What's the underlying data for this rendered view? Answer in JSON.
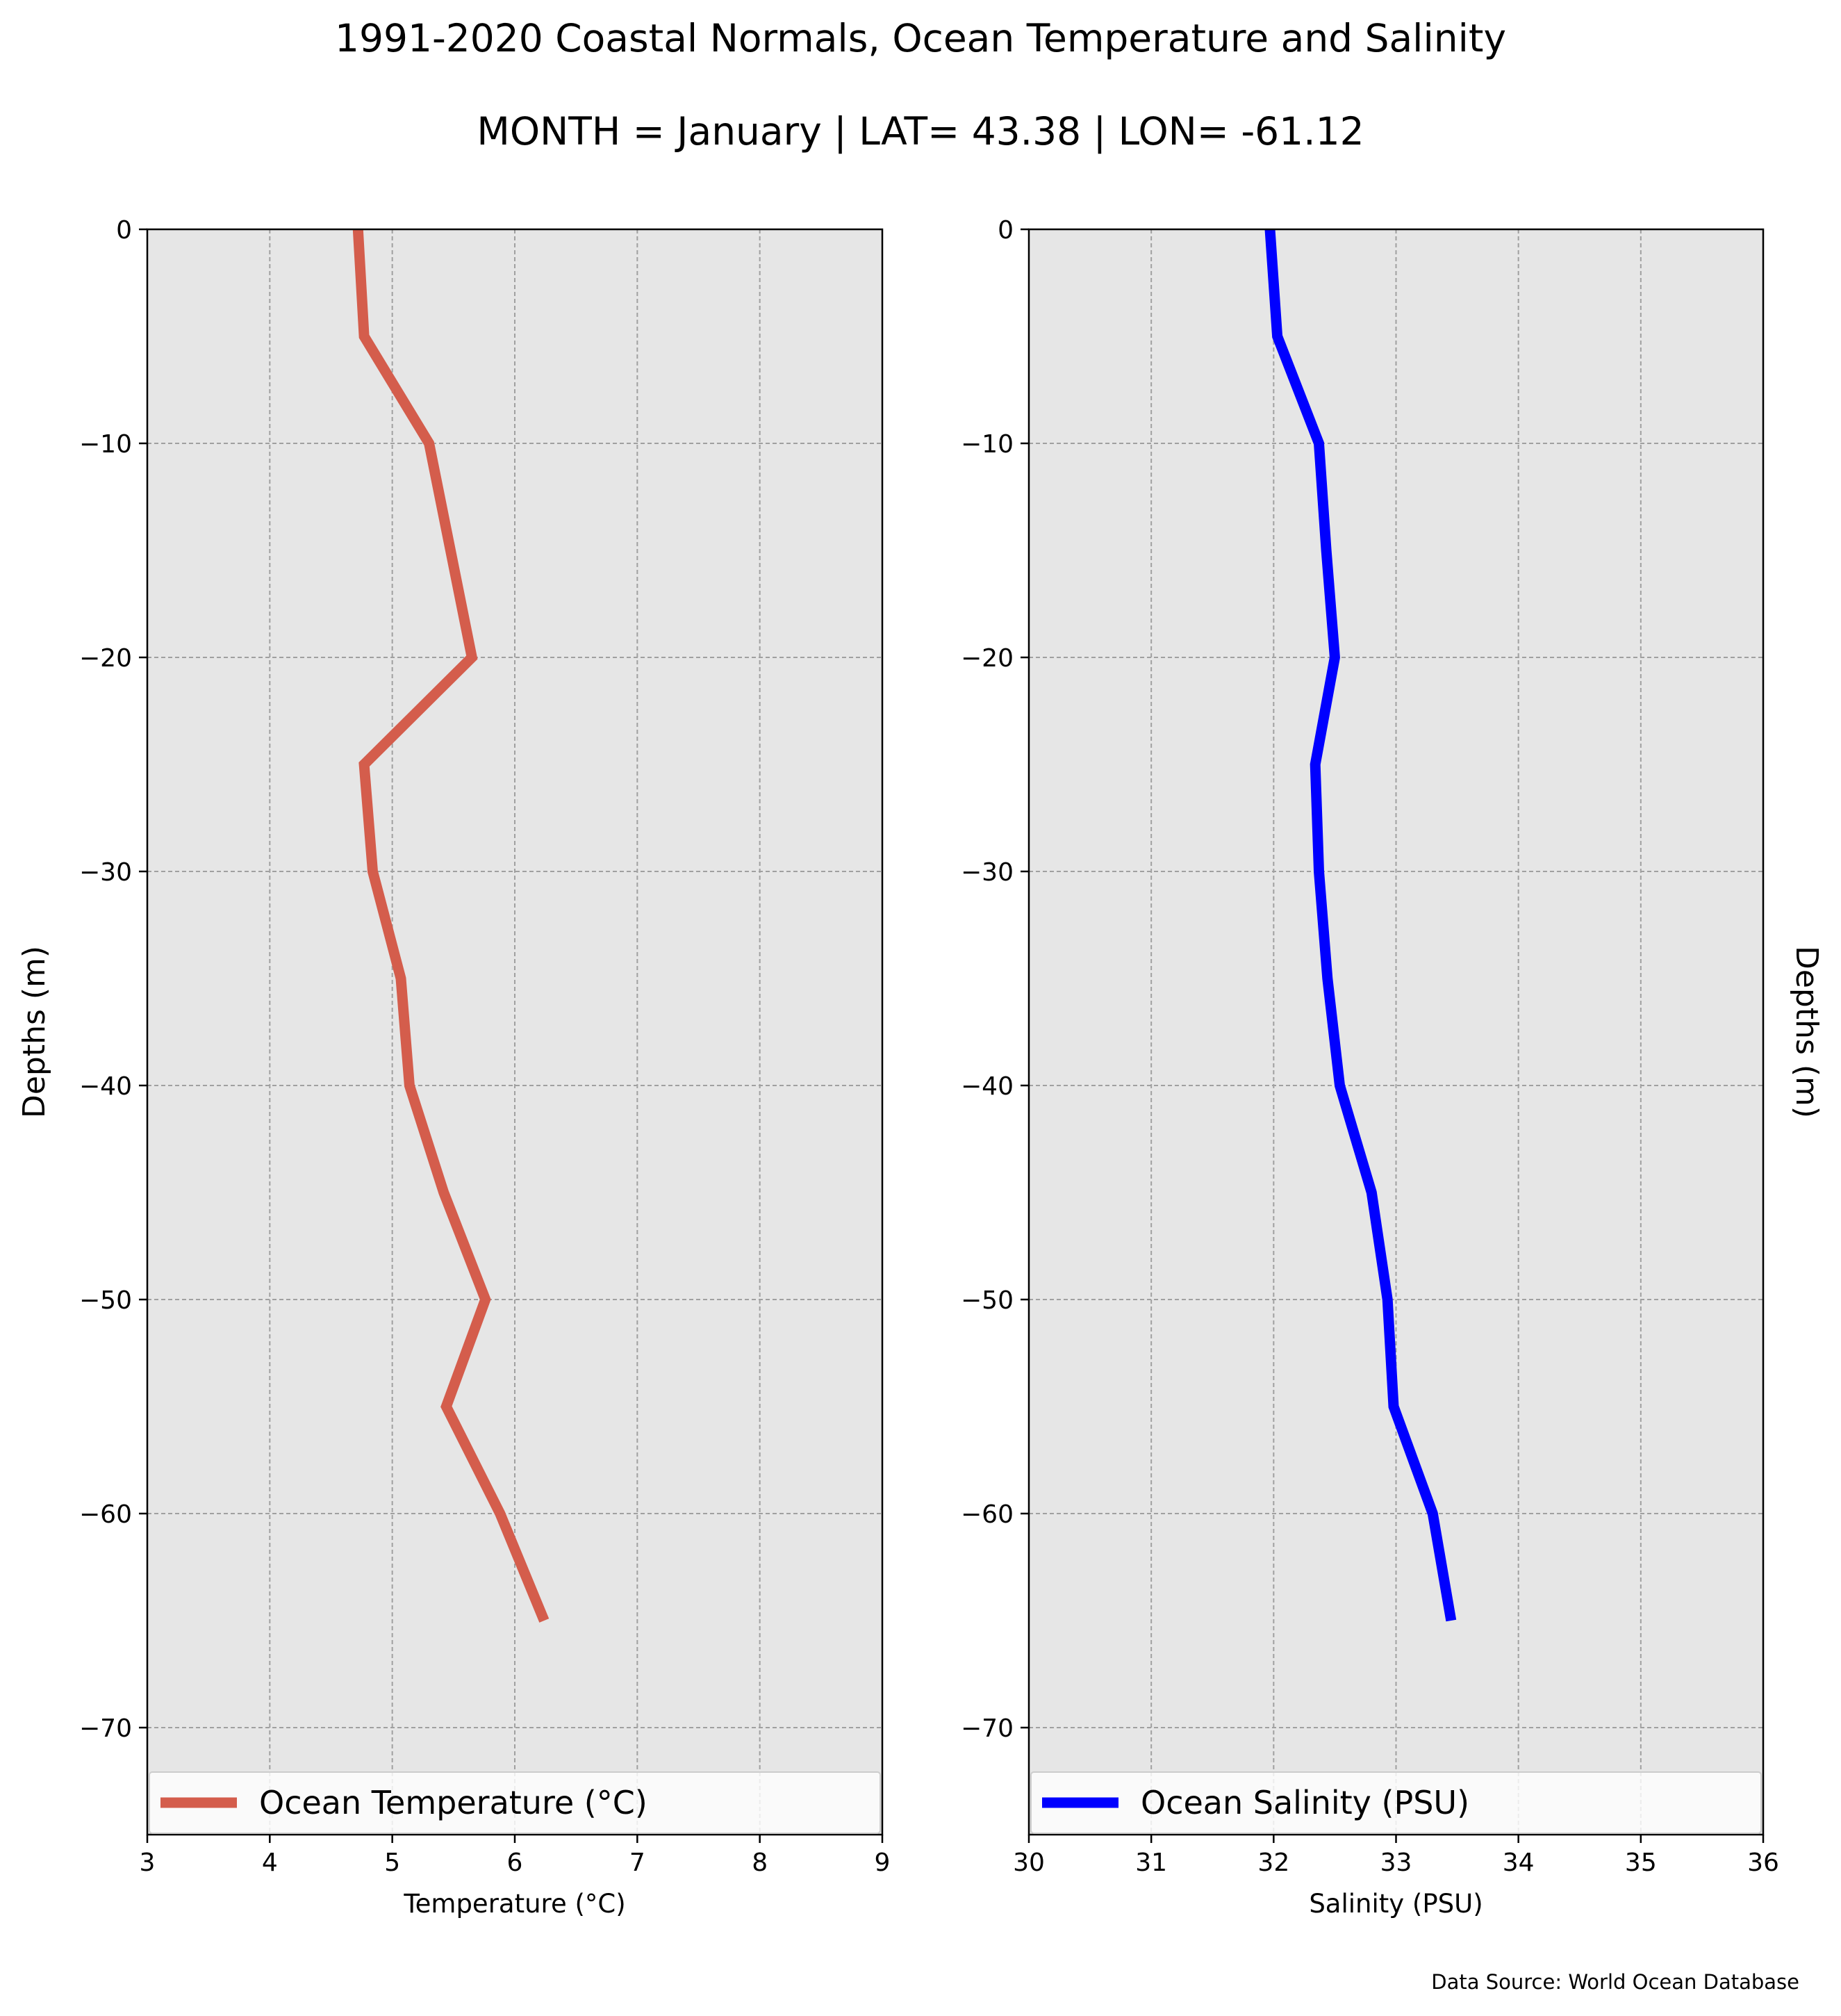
{
  "title": "1991-2020 Coastal Normals, Ocean Temperature and Salinity",
  "subtitle": "MONTH = January | LAT= 43.38 | LON= -61.12",
  "source": "Data Source: World Ocean Database",
  "chart_data": [
    {
      "type": "line",
      "xlabel": "Temperature (°C)",
      "ylabel": "Depths (m)",
      "xlim": [
        3,
        9
      ],
      "ylim": [
        -75,
        0
      ],
      "xticks": [
        3,
        4,
        5,
        6,
        7,
        8,
        9
      ],
      "yticks": [
        0,
        -10,
        -20,
        -30,
        -40,
        -50,
        -60,
        -70
      ],
      "grid": true,
      "background": "#e6e6e6",
      "legend_position": "bottom",
      "series": [
        {
          "name": "Ocean Temperature (°C)",
          "color": "#d45d4c",
          "x": [
            4.72,
            4.77,
            5.3,
            5.65,
            4.77,
            4.84,
            5.07,
            5.14,
            5.42,
            5.76,
            5.44,
            5.88,
            6.24
          ],
          "y": [
            0,
            -5,
            -10,
            -20,
            -25,
            -30,
            -35,
            -40,
            -45,
            -50,
            -55,
            -60,
            -65
          ]
        }
      ]
    },
    {
      "type": "line",
      "xlabel": "Salinity (PSU)",
      "ylabel": "Depths (m)",
      "xlim": [
        30,
        36
      ],
      "ylim": [
        -75,
        0
      ],
      "xticks": [
        30,
        31,
        32,
        33,
        34,
        35,
        36
      ],
      "yticks": [
        0,
        -10,
        -20,
        -30,
        -40,
        -50,
        -60,
        -70
      ],
      "grid": true,
      "background": "#e6e6e6",
      "legend_position": "bottom",
      "series": [
        {
          "name": "Ocean Salinity (PSU)",
          "color": "#0000ff",
          "x": [
            31.97,
            32.03,
            32.37,
            32.43,
            32.5,
            32.34,
            32.37,
            32.44,
            32.54,
            32.8,
            32.93,
            32.98,
            33.3,
            33.45
          ],
          "y": [
            0,
            -5,
            -10,
            -15,
            -20,
            -25,
            -30,
            -35,
            -40,
            -45,
            -50,
            -55,
            -60,
            -65
          ]
        }
      ]
    }
  ]
}
